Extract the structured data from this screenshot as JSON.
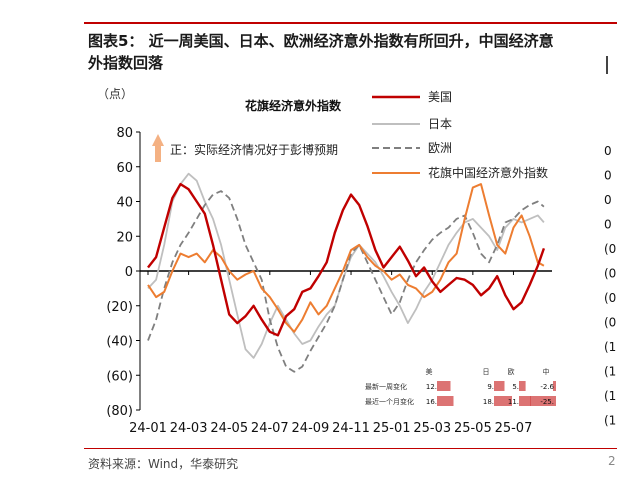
{
  "header": {
    "title_line1": "图表5：  近一周美国、日本、欧洲经济意外指数有所回升，中国经济意",
    "title_line2": "外指数回落"
  },
  "footer": {
    "source": "资料来源：Wind，华泰研究",
    "page_fragment": "2"
  },
  "right_edge_fragments": [
    "0",
    "0",
    "0",
    "0",
    "(0",
    "(0",
    "(0",
    "(0",
    "(1",
    "(1",
    "(1",
    "(1"
  ],
  "colors": {
    "us": "#c00000",
    "japan": "#bfbfbf",
    "europe": "#7f7f7f",
    "china": "#ed7d31",
    "arrow": "#f4b183",
    "axis": "#000000",
    "title_red": "#c00000"
  },
  "chart_data": {
    "type": "line",
    "unit_label": "（点）",
    "inner_title": "花旗经济意外指数",
    "annotation": "正：实际经济情况好于彭博预期",
    "ylim": [
      -80,
      80
    ],
    "y_ticks": [
      "80",
      "60",
      "40",
      "20",
      "0",
      "(20)",
      "(40)",
      "(60)",
      "(80)"
    ],
    "y_tick_values": [
      80,
      60,
      40,
      20,
      0,
      -20,
      -40,
      -60,
      -80
    ],
    "x_ticks": [
      "24-01",
      "24-03",
      "24-05",
      "24-07",
      "24-09",
      "24-11",
      "25-01",
      "25-03",
      "25-05",
      "25-07"
    ],
    "x_tick_months": [
      0,
      2,
      4,
      6,
      8,
      10,
      12,
      14,
      16,
      18
    ],
    "x_range_months": [
      0,
      19.8
    ],
    "legend": [
      {
        "label": "美国",
        "key": "us"
      },
      {
        "label": "日本",
        "key": "japan"
      },
      {
        "label": "欧洲",
        "key": "europe"
      },
      {
        "label": "花旗中国经济意外指数",
        "key": "china"
      }
    ],
    "series": [
      {
        "name": "美国",
        "key": "us",
        "x": [
          0,
          0.4,
          0.8,
          1.2,
          1.6,
          2.0,
          2.4,
          2.8,
          3.2,
          3.6,
          4.0,
          4.4,
          4.8,
          5.2,
          5.6,
          6.0,
          6.4,
          6.8,
          7.2,
          7.6,
          8.0,
          8.4,
          8.8,
          9.2,
          9.6,
          10.0,
          10.4,
          10.8,
          11.2,
          11.6,
          12.0,
          12.4,
          12.8,
          13.2,
          13.6,
          14.0,
          14.4,
          14.8,
          15.2,
          15.6,
          16.0,
          16.4,
          16.8,
          17.2,
          17.6,
          18.0,
          18.4,
          18.8,
          19.2,
          19.5
        ],
        "y": [
          2,
          8,
          25,
          42,
          50,
          47,
          40,
          33,
          15,
          -5,
          -25,
          -30,
          -26,
          -20,
          -28,
          -35,
          -37,
          -26,
          -22,
          -12,
          -10,
          -3,
          5,
          22,
          35,
          44,
          38,
          26,
          12,
          2,
          8,
          14,
          6,
          -3,
          2,
          -6,
          -12,
          -8,
          -4,
          -5,
          -8,
          -14,
          -10,
          -3,
          -14,
          -22,
          -18,
          -8,
          3,
          13
        ]
      },
      {
        "name": "日本",
        "key": "japan",
        "x": [
          0,
          0.4,
          0.8,
          1.2,
          1.6,
          2.0,
          2.4,
          2.8,
          3.2,
          3.6,
          4.0,
          4.4,
          4.8,
          5.2,
          5.6,
          6.0,
          6.4,
          6.8,
          7.2,
          7.6,
          8.0,
          8.4,
          8.8,
          9.2,
          9.6,
          10.0,
          10.4,
          10.8,
          11.2,
          11.6,
          12.0,
          12.4,
          12.8,
          13.2,
          13.6,
          14.0,
          14.4,
          14.8,
          15.2,
          15.6,
          16.0,
          16.4,
          16.8,
          17.2,
          17.6,
          18.0,
          18.4,
          18.8,
          19.2,
          19.5
        ],
        "y": [
          -10,
          -5,
          15,
          40,
          50,
          56,
          52,
          40,
          30,
          15,
          -5,
          -25,
          -45,
          -50,
          -42,
          -30,
          -20,
          -28,
          -36,
          -42,
          -40,
          -32,
          -25,
          -20,
          -5,
          8,
          15,
          10,
          5,
          -3,
          -12,
          -20,
          -30,
          -22,
          -12,
          -5,
          5,
          15,
          22,
          28,
          30,
          25,
          20,
          12,
          25,
          30,
          28,
          30,
          32,
          28
        ]
      },
      {
        "name": "欧洲",
        "key": "europe",
        "x": [
          0,
          0.4,
          0.8,
          1.2,
          1.6,
          2.0,
          2.4,
          2.8,
          3.2,
          3.6,
          4.0,
          4.4,
          4.8,
          5.2,
          5.6,
          6.0,
          6.4,
          6.8,
          7.2,
          7.6,
          8.0,
          8.4,
          8.8,
          9.2,
          9.6,
          10.0,
          10.4,
          10.8,
          11.2,
          11.6,
          12.0,
          12.4,
          12.8,
          13.2,
          13.6,
          14.0,
          14.4,
          14.8,
          15.2,
          15.6,
          16.0,
          16.4,
          16.8,
          17.2,
          17.6,
          18.0,
          18.4,
          18.8,
          19.2,
          19.5
        ],
        "y": [
          -40,
          -28,
          -10,
          5,
          15,
          22,
          30,
          38,
          44,
          46,
          42,
          30,
          15,
          5,
          -5,
          -28,
          -44,
          -55,
          -58,
          -55,
          -46,
          -38,
          -30,
          -20,
          -5,
          10,
          15,
          5,
          -5,
          -15,
          -25,
          -18,
          -5,
          5,
          12,
          18,
          22,
          25,
          30,
          32,
          22,
          10,
          5,
          15,
          28,
          30,
          35,
          38,
          40,
          37
        ]
      },
      {
        "name": "花旗中国经济意外指数",
        "key": "china",
        "x": [
          0,
          0.4,
          0.8,
          1.2,
          1.6,
          2.0,
          2.4,
          2.8,
          3.2,
          3.6,
          4.0,
          4.4,
          4.8,
          5.2,
          5.6,
          6.0,
          6.4,
          6.8,
          7.2,
          7.6,
          8.0,
          8.4,
          8.8,
          9.2,
          9.6,
          10.0,
          10.4,
          10.8,
          11.2,
          11.6,
          12.0,
          12.4,
          12.8,
          13.2,
          13.6,
          14.0,
          14.4,
          14.8,
          15.2,
          15.6,
          16.0,
          16.4,
          16.8,
          17.2,
          17.6,
          18.0,
          18.4,
          18.8,
          19.2,
          19.5
        ],
        "y": [
          -8,
          -15,
          -12,
          0,
          10,
          8,
          10,
          5,
          12,
          8,
          0,
          -5,
          -2,
          0,
          -10,
          -15,
          -22,
          -30,
          -35,
          -28,
          -18,
          -25,
          -20,
          -10,
          0,
          12,
          15,
          8,
          3,
          0,
          -5,
          -2,
          -8,
          -10,
          -15,
          -12,
          -5,
          5,
          10,
          30,
          48,
          50,
          32,
          15,
          10,
          25,
          32,
          20,
          5,
          3
        ]
      }
    ],
    "table": {
      "headers": [
        "美",
        "日",
        "欧",
        "中"
      ],
      "rows": [
        {
          "label": "最新一周变化",
          "values": [
            "12.",
            "9.",
            "5.",
            "-2.6"
          ],
          "fracs": [
            0.45,
            0.35,
            0.22,
            0.1
          ]
        },
        {
          "label": "最近一个月变化",
          "values": [
            "16.",
            "18.",
            "11.",
            "-25."
          ],
          "fracs": [
            0.55,
            0.6,
            0.4,
            0.85
          ]
        }
      ]
    }
  }
}
